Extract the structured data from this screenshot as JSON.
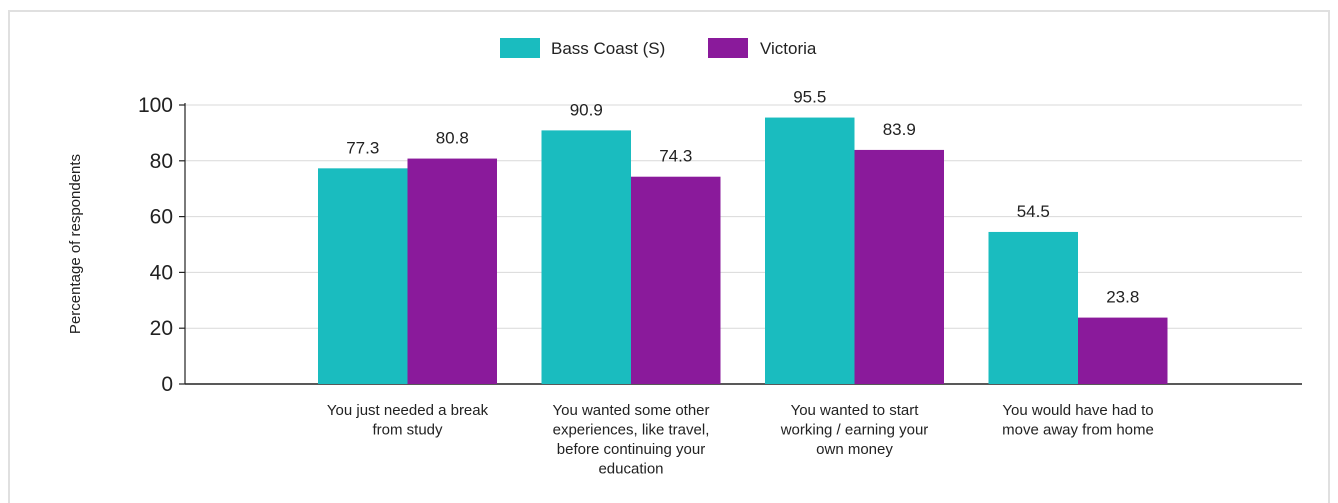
{
  "chart_data": {
    "type": "bar",
    "categories": [
      [
        "You just needed a break",
        "from study"
      ],
      [
        "You wanted some other",
        "experiences, like travel,",
        "before continuing your",
        "education"
      ],
      [
        "You wanted to start",
        "working / earning your",
        "own money"
      ],
      [
        "You would have had to",
        "move away from home"
      ]
    ],
    "series": [
      {
        "name": "Bass Coast (S)",
        "color": "#1ABCBF",
        "values": [
          77.3,
          90.9,
          95.5,
          54.5
        ]
      },
      {
        "name": "Victoria",
        "color": "#8A1A9B",
        "values": [
          80.8,
          74.3,
          83.9,
          23.8
        ]
      }
    ],
    "ylabel": "Percentage of respondents",
    "xlabel": "",
    "ylim": [
      0,
      100
    ],
    "yticks": [
      0,
      20,
      40,
      60,
      80,
      100
    ],
    "grid": true,
    "legend_position": "top-center",
    "data_labels": true
  }
}
